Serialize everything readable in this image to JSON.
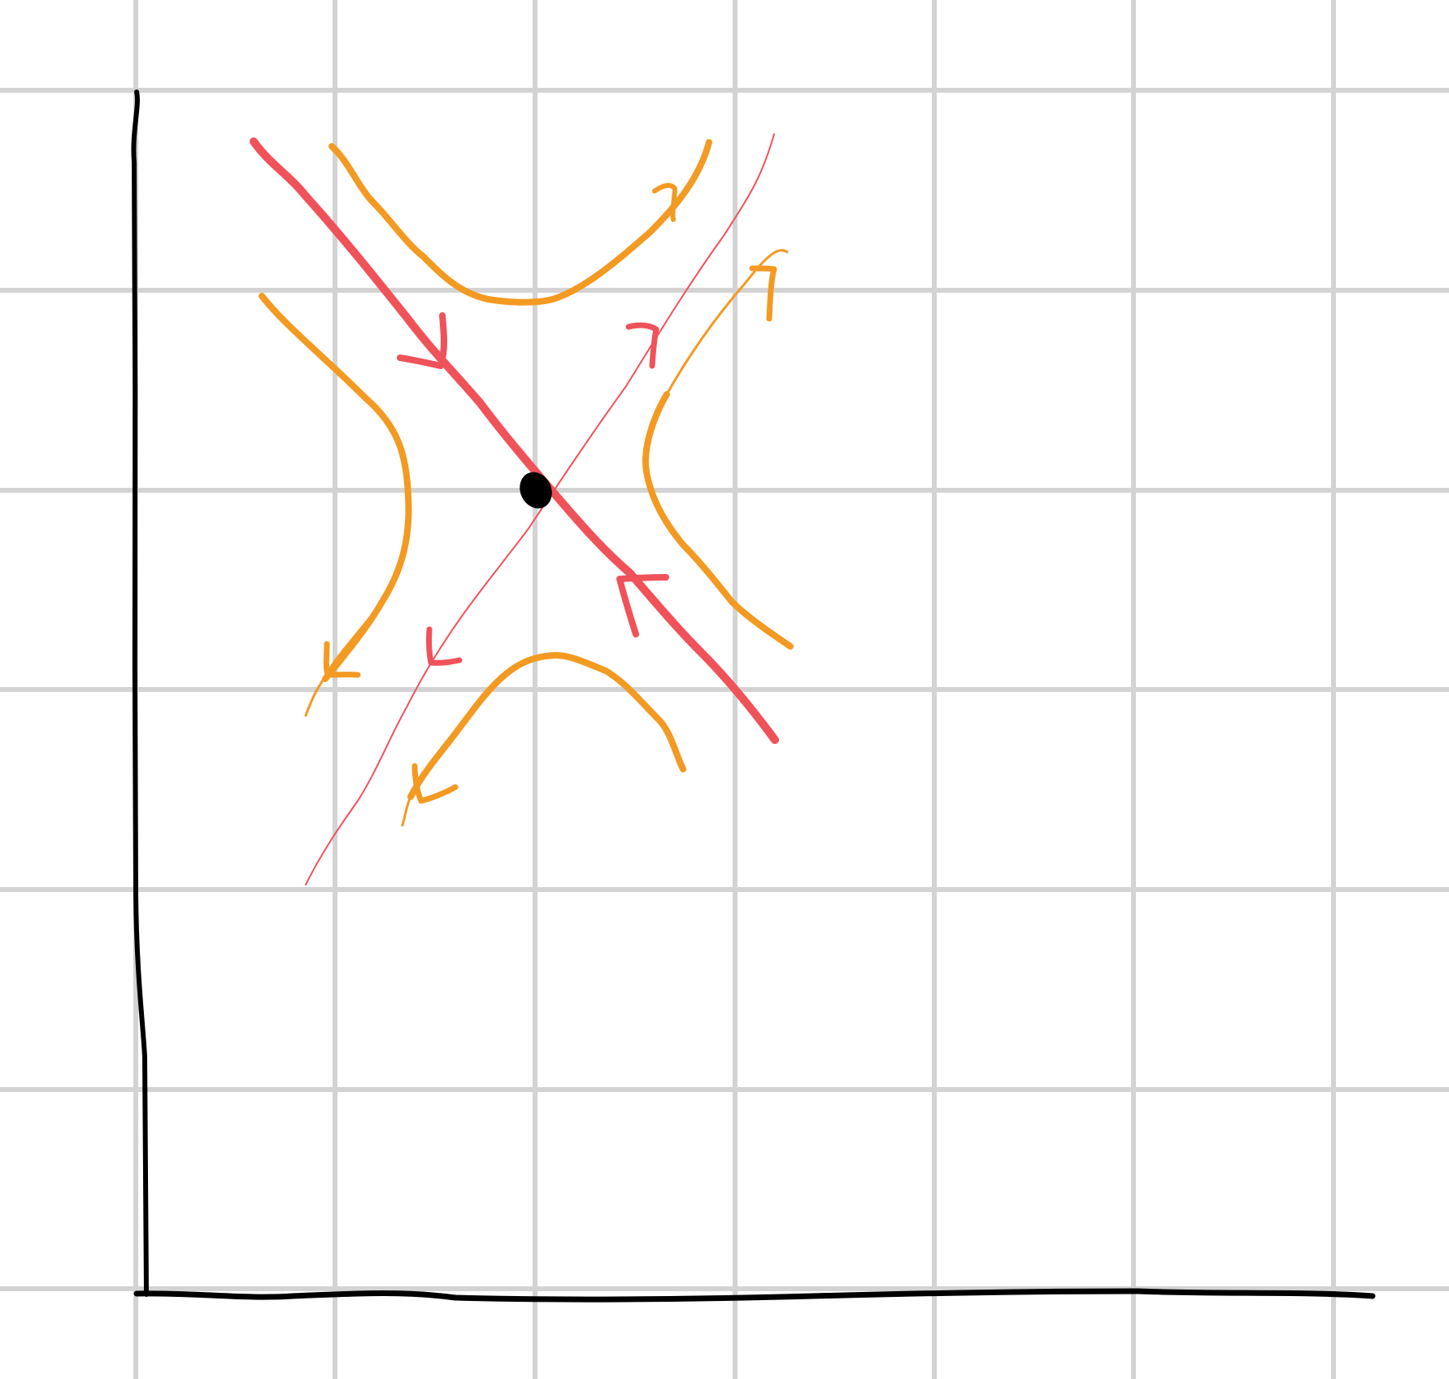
{
  "diagram": {
    "kind": "phase-portrait-saddle-point",
    "colors": {
      "background": "#ffffff",
      "grid": "#d3d3d3",
      "axes": "#000000",
      "eigenvector_lines": "#f0525a",
      "trajectories": "#f39a22",
      "fixed_point": "#000000"
    },
    "fixed_point": {
      "name": "saddle-point"
    },
    "eigen_directions": [
      {
        "name": "stable-manifold",
        "flow": "inward"
      },
      {
        "name": "unstable-manifold",
        "flow": "outward"
      }
    ],
    "trajectories": [
      {
        "name": "trajectory-top",
        "flow": "outward"
      },
      {
        "name": "trajectory-left",
        "flow": "outward"
      },
      {
        "name": "trajectory-right",
        "flow": "outward"
      },
      {
        "name": "trajectory-bottom",
        "flow": "outward"
      }
    ]
  }
}
